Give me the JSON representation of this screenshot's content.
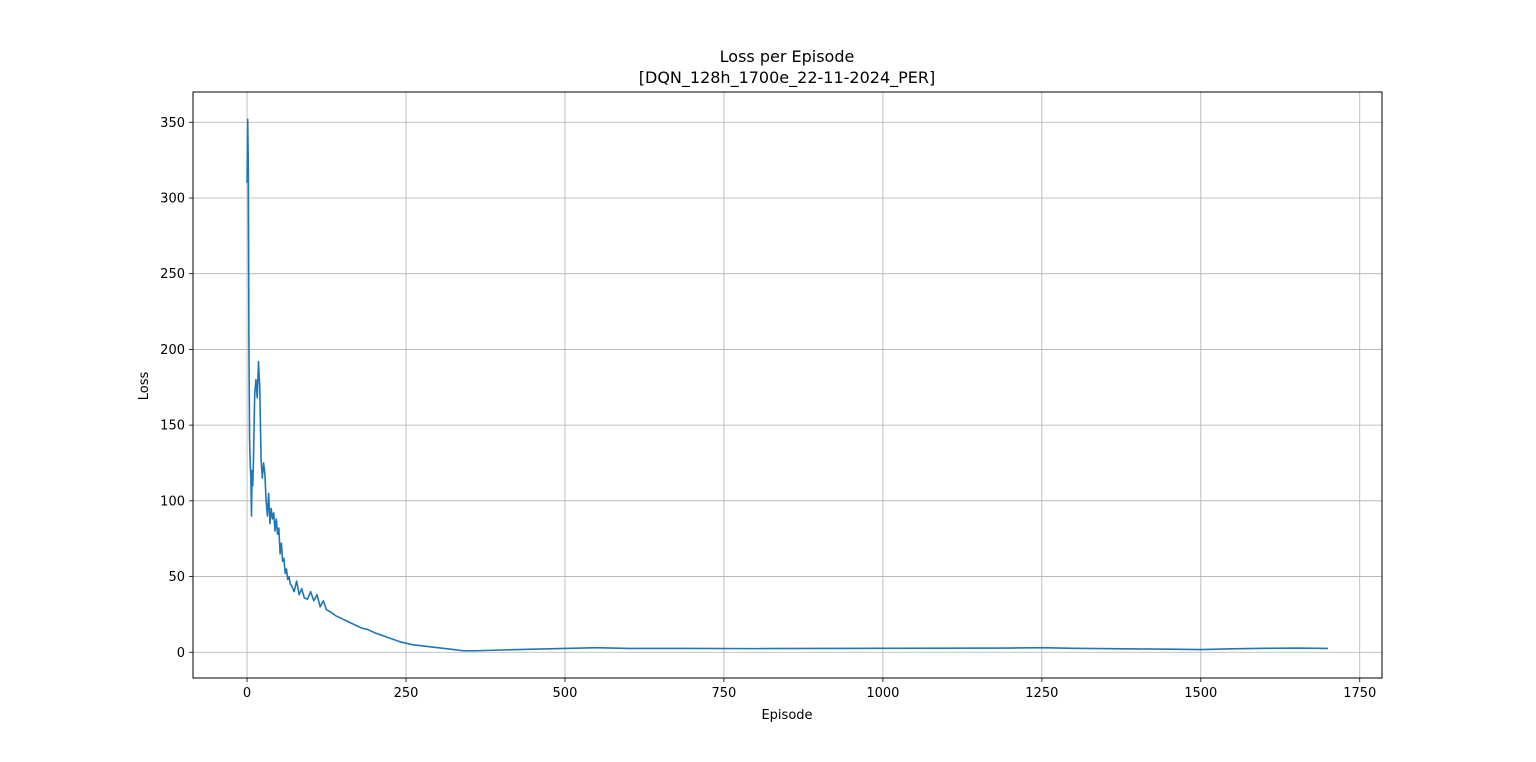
{
  "chart_data": {
    "type": "line",
    "title": "Loss per Episode",
    "subtitle": "[DQN_128h_1700e_22-11-2024_PER]",
    "xlabel": "Episode",
    "ylabel": "Loss",
    "xlim": [
      -85,
      1785
    ],
    "ylim": [
      -17,
      370
    ],
    "grid": true,
    "line_color": "#1f77b4",
    "x_ticks": [
      0,
      250,
      500,
      750,
      1000,
      1250,
      1500,
      1750
    ],
    "x_tick_labels": [
      "0",
      "250",
      "500",
      "750",
      "1000",
      "1250",
      "1500",
      "1750"
    ],
    "y_ticks": [
      0,
      50,
      100,
      150,
      200,
      250,
      300,
      350
    ],
    "y_tick_labels": [
      "0",
      "50",
      "100",
      "150",
      "200",
      "250",
      "300",
      "350"
    ],
    "series": [
      {
        "x": [
          0,
          1,
          2,
          3,
          4,
          5,
          6,
          7,
          8,
          9,
          10,
          12,
          14,
          16,
          18,
          20,
          22,
          24,
          26,
          28,
          30,
          32,
          34,
          36,
          38,
          40,
          42,
          44,
          46,
          48,
          50,
          52,
          54,
          56,
          58,
          60,
          62,
          64,
          66,
          68,
          70,
          74,
          78,
          82,
          86,
          90,
          95,
          100,
          105,
          110,
          115,
          120,
          125,
          130,
          140,
          150,
          160,
          170,
          180,
          190,
          200,
          220,
          240,
          260,
          280,
          300,
          320,
          340,
          360,
          400,
          450,
          500,
          550,
          600,
          700,
          800,
          900,
          1000,
          1100,
          1200,
          1250,
          1300,
          1400,
          1450,
          1500,
          1550,
          1600,
          1650,
          1700
        ],
        "y": [
          310,
          352,
          320,
          200,
          140,
          125,
          115,
          90,
          120,
          110,
          125,
          170,
          180,
          168,
          192,
          175,
          128,
          115,
          125,
          118,
          100,
          90,
          105,
          85,
          95,
          88,
          92,
          80,
          88,
          78,
          82,
          65,
          72,
          60,
          62,
          52,
          55,
          48,
          50,
          45,
          44,
          40,
          47,
          38,
          42,
          36,
          35,
          40,
          34,
          38,
          30,
          34,
          28,
          27,
          24,
          22,
          20,
          18,
          16,
          15,
          13,
          10,
          7,
          5,
          4,
          3,
          2,
          1,
          1,
          1.5,
          2,
          2.5,
          3,
          2.5,
          2.5,
          2.4,
          2.5,
          2.6,
          2.7,
          2.8,
          3,
          2.6,
          2.2,
          2,
          1.8,
          2.3,
          2.6,
          2.8,
          2.5
        ]
      }
    ]
  }
}
